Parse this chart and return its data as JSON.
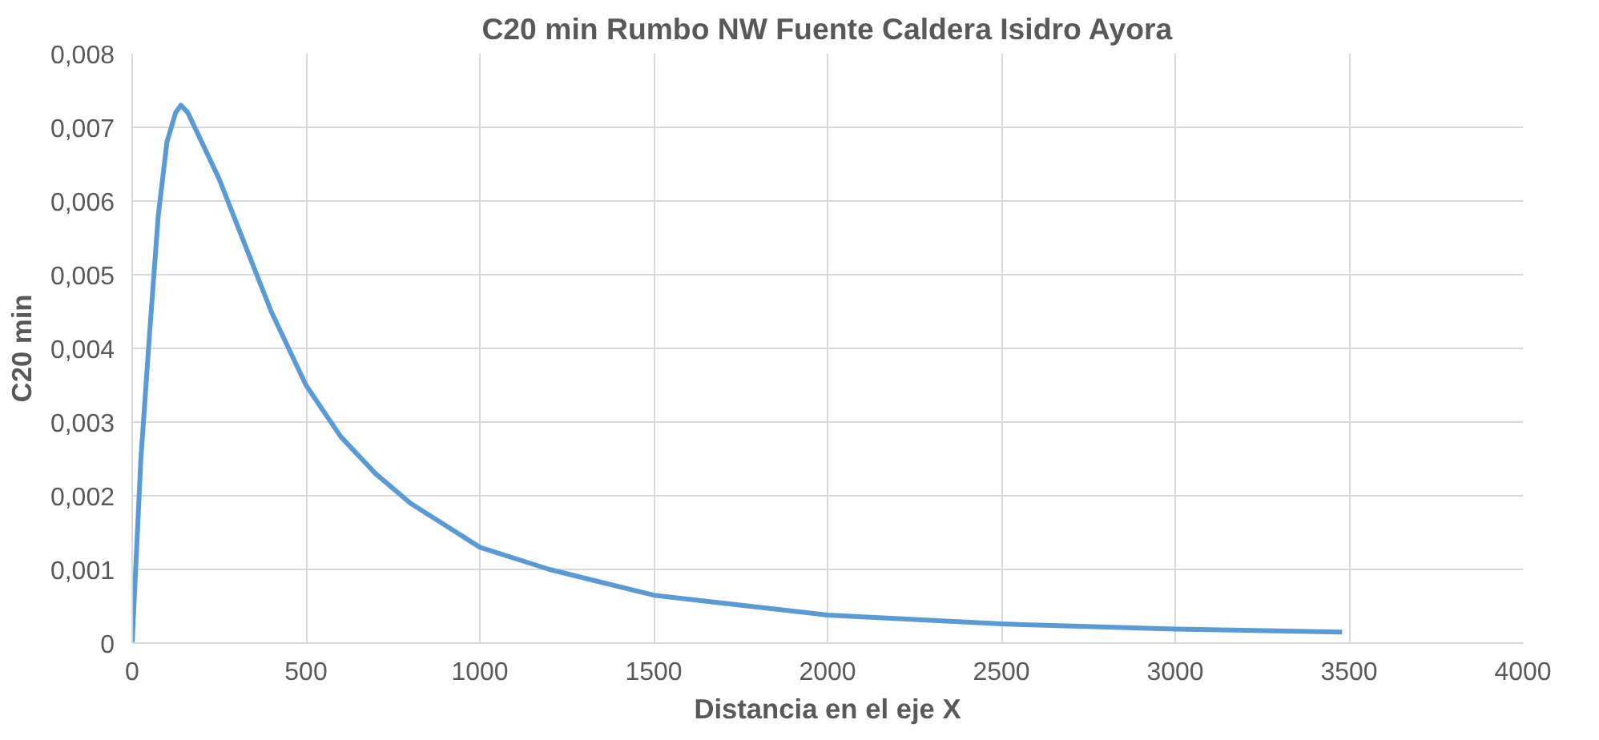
{
  "chart_data": {
    "type": "line",
    "title": "C20 min Rumbo NW Fuente Caldera Isidro Ayora",
    "xlabel": "Distancia en el eje X",
    "ylabel": "C20 min",
    "x": [
      0,
      25,
      50,
      75,
      100,
      125,
      140,
      160,
      200,
      250,
      300,
      350,
      400,
      500,
      600,
      700,
      800,
      900,
      1000,
      1200,
      1500,
      2000,
      2500,
      3000,
      3480
    ],
    "series": [
      {
        "color": "#5b9bd5",
        "values": [
          0,
          0.0025,
          0.0042,
          0.0058,
          0.0068,
          0.0072,
          0.0073,
          0.0072,
          0.0068,
          0.0063,
          0.0057,
          0.0051,
          0.0045,
          0.0035,
          0.0028,
          0.0023,
          0.0019,
          0.0016,
          0.0013,
          0.001,
          0.00065,
          0.00038,
          0.00026,
          0.00019,
          0.00015
        ]
      }
    ],
    "xlim": [
      0,
      4000
    ],
    "xticks": [
      0,
      500,
      1000,
      1500,
      2000,
      2500,
      3000,
      3500,
      4000
    ],
    "ylim": [
      0,
      0.008
    ],
    "yticks": [
      0,
      {
        "value": 0.001,
        "label": "0,001"
      },
      {
        "value": 0.002,
        "label": "0,002"
      },
      {
        "value": 0.003,
        "label": "0,003"
      },
      {
        "value": 0.004,
        "label": "0,004"
      },
      {
        "value": 0.005,
        "label": "0,005"
      },
      {
        "value": 0.006,
        "label": "0,006"
      },
      {
        "value": 0.007,
        "label": "0,007"
      },
      {
        "value": 0.008,
        "label": "0,008"
      }
    ],
    "grid": true,
    "marker": "none",
    "line_style": "solid"
  }
}
